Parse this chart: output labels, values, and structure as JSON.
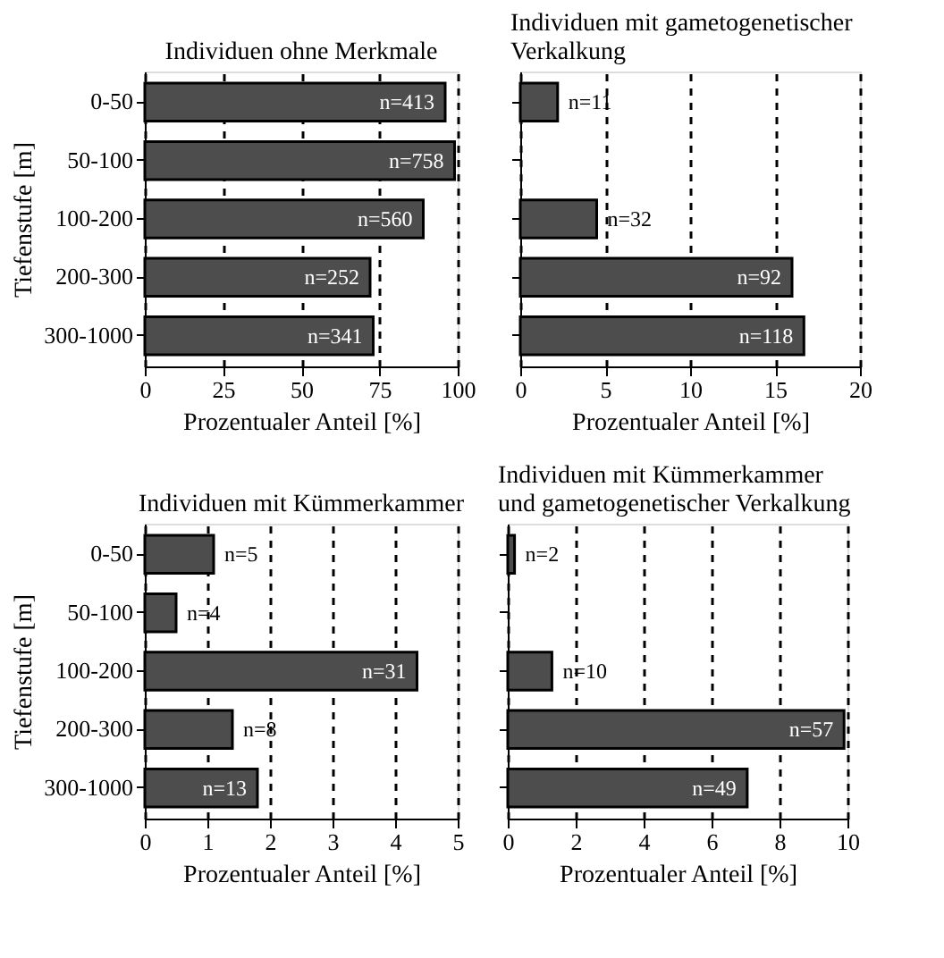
{
  "chart_data": [
    {
      "type": "bar",
      "orientation": "horizontal",
      "title": "Individuen ohne Merkmale",
      "xlabel": "Prozentualer Anteil [%]",
      "ylabel": "Tiefenstufe [m]",
      "categories": [
        "0-50",
        "50-100",
        "100-200",
        "200-300",
        "300-1000"
      ],
      "values": [
        96,
        99,
        89,
        72,
        73
      ],
      "color": "#4d4d4d",
      "xlim": [
        0,
        100
      ],
      "xticks": [
        0,
        25,
        50,
        75,
        100
      ],
      "grid": "x",
      "annotations": [
        {
          "text": "n=413",
          "x": 96,
          "y": "0-50"
        },
        {
          "text": "n=758",
          "x": 99,
          "y": "50-100"
        },
        {
          "text": "n=560",
          "x": 89,
          "y": "100-200"
        },
        {
          "text": "n=252",
          "x": 72,
          "y": "200-300"
        },
        {
          "text": "n=341",
          "x": 73,
          "y": "300-1000"
        }
      ]
    },
    {
      "type": "bar",
      "orientation": "horizontal",
      "title": "Individuen mit gametogenetischer\nVerkalkung",
      "xlabel": "Prozentualer Anteil [%]",
      "categories": [
        "0-50",
        "50-100",
        "100-200",
        "200-300",
        "300-1000"
      ],
      "values": [
        2.2,
        0,
        4.5,
        16,
        16.7
      ],
      "color": "#4d4d4d",
      "xlim": [
        0,
        20
      ],
      "xticks": [
        0,
        5,
        10,
        15,
        20
      ],
      "grid": "x",
      "tick_labels": "x",
      "annotations": [
        {
          "text": "n=11",
          "x": 2.2,
          "y": "0-50"
        },
        {
          "text": "n=32",
          "x": 4.5,
          "y": "100-200"
        },
        {
          "text": "n=92",
          "x": 16,
          "y": "200-300"
        },
        {
          "text": "n=118",
          "x": 16.7,
          "y": "300-1000"
        }
      ]
    },
    {
      "type": "bar",
      "orientation": "horizontal",
      "title": "Individuen mit Kümmerkammer",
      "xlabel": "Prozentualer Anteil [%]",
      "ylabel": "Tiefenstufe [m]",
      "categories": [
        "0-50",
        "50-100",
        "100-200",
        "200-300",
        "300-1000"
      ],
      "values": [
        1.1,
        0.5,
        4.35,
        1.4,
        1.8
      ],
      "color": "#4d4d4d",
      "xlim": [
        0,
        5
      ],
      "xticks": [
        0,
        1,
        2,
        3,
        4,
        5
      ],
      "grid": "x",
      "annotations": [
        {
          "text": "n=5",
          "x": 1.1,
          "y": "0-50"
        },
        {
          "text": "n=4",
          "x": 0.5,
          "y": "50-100"
        },
        {
          "text": "n=31",
          "x": 4.35,
          "y": "100-200"
        },
        {
          "text": "n=8",
          "x": 1.4,
          "y": "200-300"
        },
        {
          "text": "n=13",
          "x": 1.8,
          "y": "300-1000"
        }
      ]
    },
    {
      "type": "bar",
      "orientation": "horizontal",
      "title": "Individuen mit Kümmerkammer\nund gametogenetischer Verkalkung",
      "xlabel": "Prozentualer Anteil [%]",
      "categories": [
        "0-50",
        "50-100",
        "100-200",
        "200-300",
        "300-1000"
      ],
      "values": [
        0.2,
        0,
        1.3,
        9.9,
        7.05
      ],
      "color": "#4d4d4d",
      "xlim": [
        0,
        10
      ],
      "xticks": [
        0,
        2,
        4,
        6,
        8,
        10
      ],
      "grid": "x",
      "tick_labels": "x",
      "annotations": [
        {
          "text": "n=2",
          "x": 0.2,
          "y": "0-50"
        },
        {
          "text": "n=10",
          "x": 1.3,
          "y": "100-200"
        },
        {
          "text": "n=57",
          "x": 9.9,
          "y": "200-300"
        },
        {
          "text": "n=49",
          "x": 7.05,
          "y": "300-1000"
        }
      ]
    }
  ]
}
